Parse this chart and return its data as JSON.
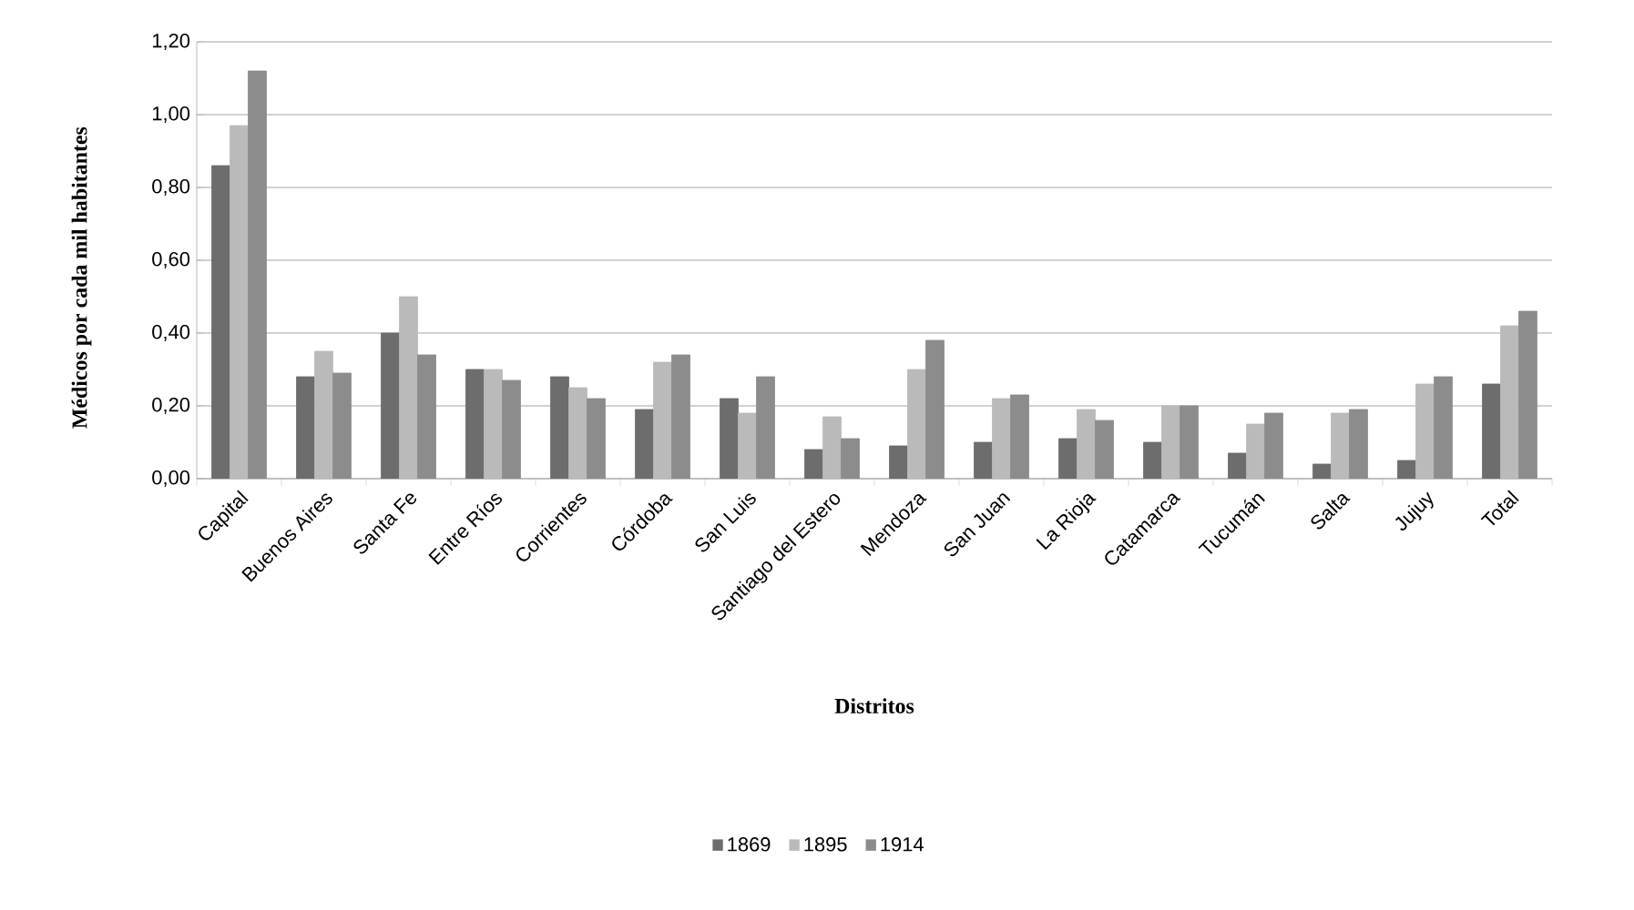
{
  "chart_data": {
    "type": "bar",
    "xlabel": "Distritos",
    "ylabel": "Médicos por cada mil habitantes",
    "categories": [
      "Capital",
      "Buenos Aires",
      "Santa Fe",
      "Entre Ríos",
      "Corrientes",
      "Córdoba",
      "San Luis",
      "Santiago del Estero",
      "Mendoza",
      "San Juan",
      "La Rioja",
      "Catamarca",
      "Tucumán",
      "Salta",
      "Jujuy",
      "Total"
    ],
    "series": [
      {
        "name": "1869",
        "color": "#6d6d6d",
        "values": [
          0.86,
          0.28,
          0.4,
          0.3,
          0.28,
          0.19,
          0.22,
          0.08,
          0.09,
          0.1,
          0.11,
          0.1,
          0.07,
          0.04,
          0.05,
          0.26
        ]
      },
      {
        "name": "1895",
        "color": "#bababa",
        "values": [
          0.97,
          0.35,
          0.5,
          0.3,
          0.25,
          0.32,
          0.18,
          0.17,
          0.3,
          0.22,
          0.19,
          0.2,
          0.15,
          0.18,
          0.26,
          0.42
        ]
      },
      {
        "name": "1914",
        "color": "#8c8c8c",
        "values": [
          1.12,
          0.29,
          0.34,
          0.27,
          0.22,
          0.34,
          0.28,
          0.11,
          0.38,
          0.23,
          0.16,
          0.2,
          0.18,
          0.19,
          0.28,
          0.46
        ]
      }
    ],
    "ylim": [
      0,
      1.2
    ],
    "yticks": [
      {
        "value": 0,
        "label": "0,00"
      },
      {
        "value": 0.2,
        "label": "0,20"
      },
      {
        "value": 0.4,
        "label": "0,40"
      },
      {
        "value": 0.6,
        "label": "0,60"
      },
      {
        "value": 0.8,
        "label": "0,80"
      },
      {
        "value": 1.0,
        "label": "1,00"
      },
      {
        "value": 1.2,
        "label": "1,20"
      }
    ],
    "grid": "y",
    "legend": "bottom"
  }
}
